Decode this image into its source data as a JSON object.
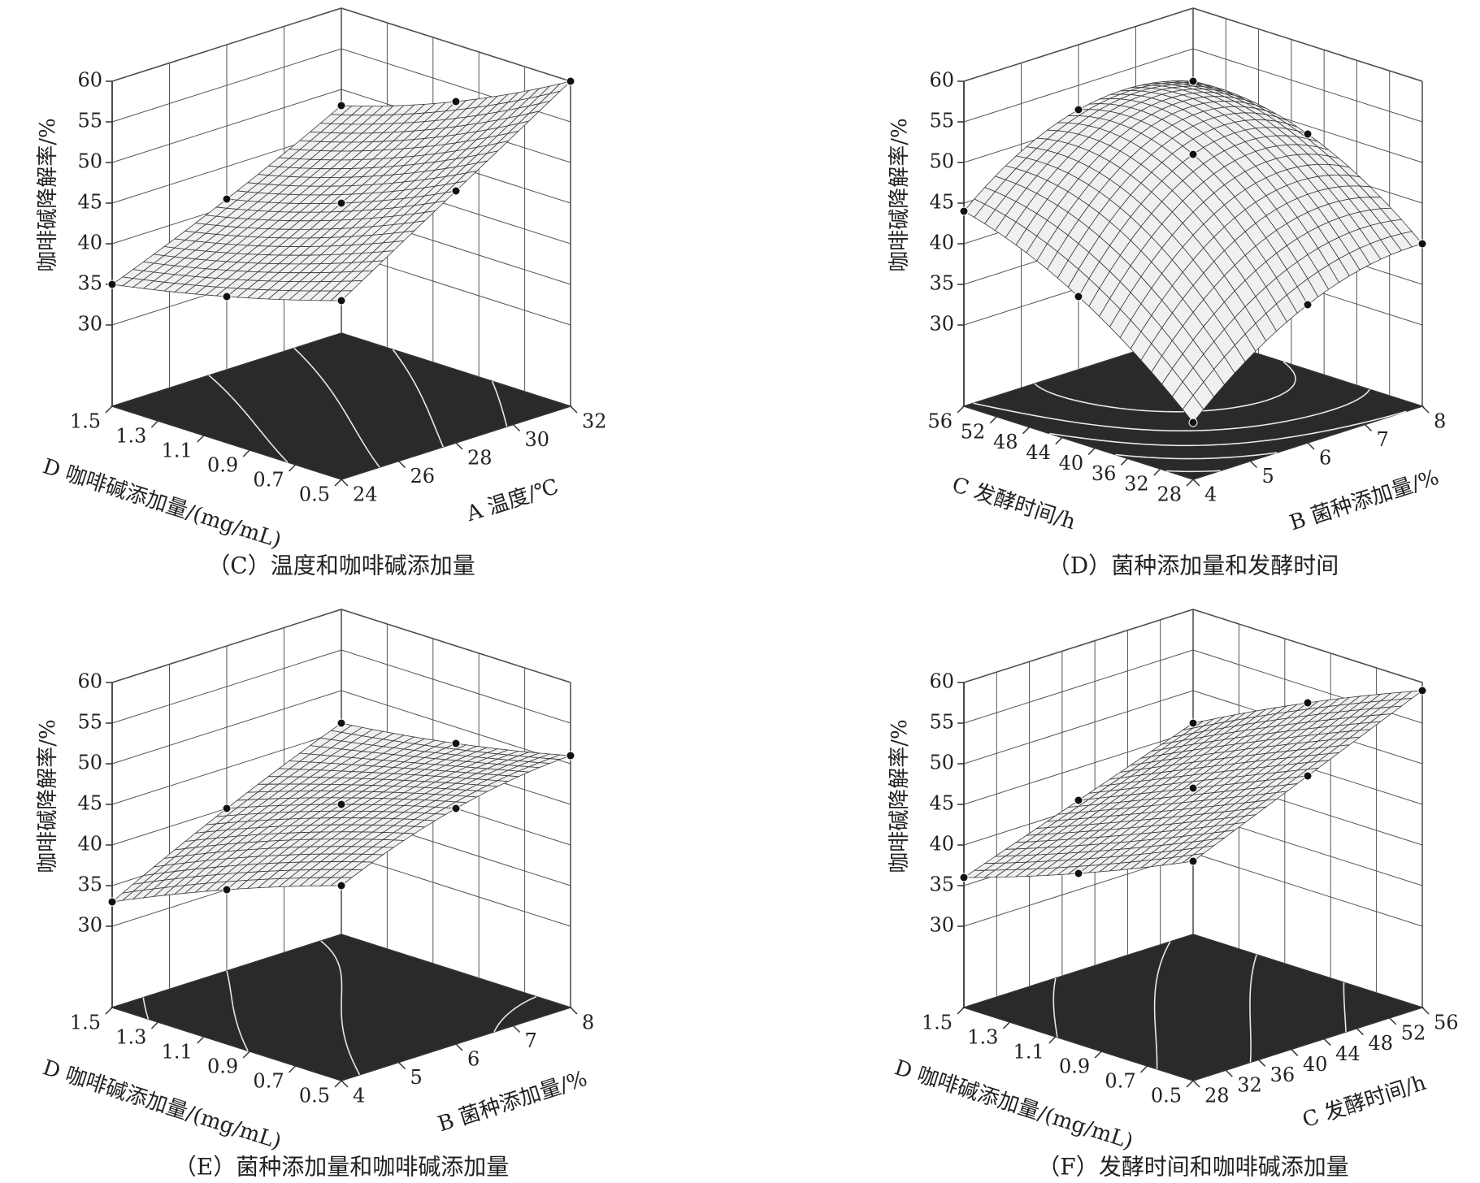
{
  "chart_data": [
    {
      "type": "surface",
      "title": "（C）温度和咖啡碱添加量",
      "zlabel": "咖啡碱降解率/%",
      "xlabel": "A 温度/℃",
      "ylabel": "D 咖啡碱添加量/(mg/mL)",
      "xlim": [
        24,
        32
      ],
      "xticks": [
        24,
        26,
        28,
        30,
        32
      ],
      "ylim": [
        0.5,
        1.5
      ],
      "yticks": [
        0.5,
        0.7,
        0.9,
        1.1,
        1.3,
        1.5
      ],
      "zlim": [
        20,
        60
      ],
      "zticks": [
        30,
        35,
        40,
        45,
        50,
        55,
        60
      ],
      "x": [
        24,
        28,
        32
      ],
      "y": [
        0.5,
        1,
        1.5
      ],
      "z": [
        [
          42,
          51,
          60
        ],
        [
          38,
          45,
          53
        ],
        [
          35,
          41,
          48
        ]
      ],
      "grid": true,
      "surface_color": "#f0f0f0",
      "floor_color": "#2a2a2a"
    },
    {
      "type": "surface",
      "title": "（D）菌种添加量和发酵时间",
      "zlabel": "咖啡碱降解率/%",
      "xlabel": "B 菌种添加量/%",
      "ylabel": "C 发酵时间/h",
      "xlim": [
        4,
        8
      ],
      "xticks": [
        4,
        5,
        6,
        7,
        8
      ],
      "ylim": [
        28,
        56
      ],
      "yticks": [
        28,
        32,
        36,
        40,
        44,
        48,
        52,
        56
      ],
      "zlim": [
        20,
        60
      ],
      "zticks": [
        30,
        35,
        40,
        45,
        50,
        55,
        60
      ],
      "x": [
        4,
        6,
        8
      ],
      "y": [
        28,
        42,
        56
      ],
      "z": [
        [
          27,
          37,
          40
        ],
        [
          38,
          51,
          49
        ],
        [
          44,
          52,
          51
        ]
      ],
      "grid": true,
      "surface_color": "#f0f0f0",
      "floor_color": "#2a2a2a"
    },
    {
      "type": "surface",
      "title": "（E）菌种添加量和咖啡碱添加量",
      "zlabel": "咖啡碱降解率/%",
      "xlabel": "B 菌种添加量/%",
      "ylabel": "D 咖啡碱添加量/(mg/mL)",
      "xlim": [
        4,
        8
      ],
      "xticks": [
        4,
        5,
        6,
        7,
        8
      ],
      "ylim": [
        0.5,
        1.5
      ],
      "yticks": [
        0.5,
        0.7,
        0.9,
        1.1,
        1.3,
        1.5
      ],
      "zlim": [
        20,
        60
      ],
      "zticks": [
        30,
        35,
        40,
        45,
        50,
        55,
        60
      ],
      "x": [
        4,
        6,
        8
      ],
      "y": [
        0.5,
        1,
        1.5
      ],
      "z": [
        [
          44,
          49,
          51
        ],
        [
          39,
          45,
          48
        ],
        [
          33,
          40,
          46
        ]
      ],
      "grid": true,
      "surface_color": "#f0f0f0",
      "floor_color": "#2a2a2a"
    },
    {
      "type": "surface",
      "title": "（F）发酵时间和咖啡碱添加量",
      "zlabel": "咖啡碱降解率/%",
      "xlabel": "C 发酵时间/h",
      "ylabel": "D 咖啡碱添加量/(mg/mL)",
      "xlim": [
        28,
        56
      ],
      "xticks": [
        28,
        32,
        36,
        40,
        44,
        48,
        52,
        56
      ],
      "ylim": [
        0.5,
        1.5
      ],
      "yticks": [
        0.5,
        0.7,
        0.9,
        1.1,
        1.3,
        1.5
      ],
      "zlim": [
        20,
        60
      ],
      "zticks": [
        30,
        35,
        40,
        45,
        50,
        55,
        60
      ],
      "x": [
        28,
        42,
        56
      ],
      "y": [
        0.5,
        1,
        1.5
      ],
      "z": [
        [
          47,
          53,
          59
        ],
        [
          41,
          47,
          53
        ],
        [
          36,
          41,
          46
        ]
      ],
      "grid": true,
      "surface_color": "#f0f0f0",
      "floor_color": "#2a2a2a"
    }
  ]
}
